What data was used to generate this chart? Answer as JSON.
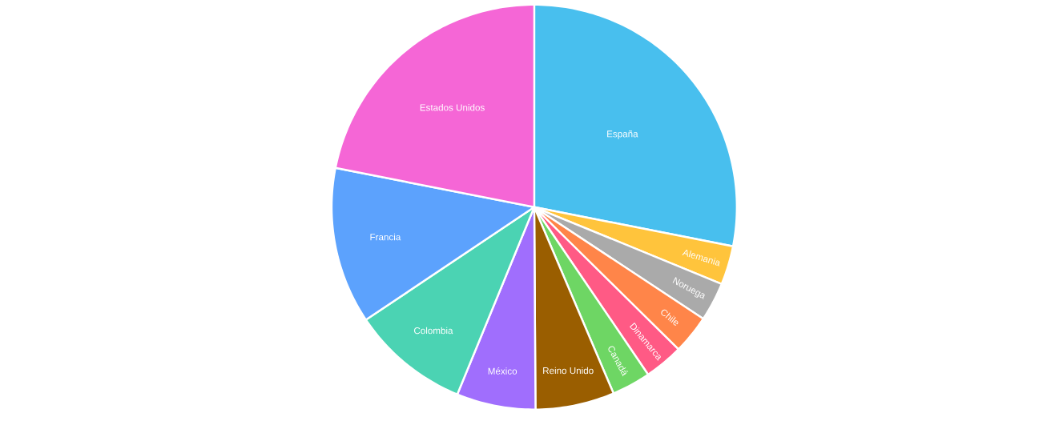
{
  "chart_data": {
    "type": "pie",
    "categories": [
      "España",
      "Alemania",
      "Noruega",
      "Chile",
      "Dinamarca",
      "Canadá",
      "Reino Unido",
      "México",
      "Colombia",
      "Francia",
      "Estados Unidos"
    ],
    "values": [
      28.1,
      3.1,
      3.1,
      3.1,
      3.1,
      3.1,
      6.3,
      6.3,
      9.4,
      12.5,
      21.9
    ],
    "colors": [
      "#48bfee",
      "#ffc43c",
      "#aaaaaa",
      "#ff8549",
      "#ff5a85",
      "#6ed664",
      "#9a5e00",
      "#a06efd",
      "#4bd3b3",
      "#5ca2fd",
      "#f566d6"
    ]
  }
}
